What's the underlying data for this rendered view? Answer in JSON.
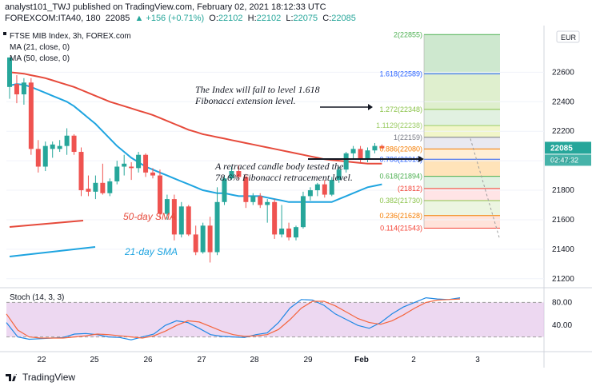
{
  "header": {
    "publisher_line": "analyst101_TWJ published on TradingView.com, February 02, 2021 18:12:33 UTC",
    "symbol_line": {
      "symbol": "FOREXCOM:ITA40, 180",
      "last": "22085",
      "change": "▲ +156 (+0.71%)",
      "o_label": "O:",
      "o": "22102",
      "h_label": "H:",
      "h": "22102",
      "l_label": "L:",
      "l": "22075",
      "c_label": "C:",
      "c": "22085"
    }
  },
  "legend": {
    "title": "FTSE MIB Index, 3h, FOREX.com",
    "ma21": "MA (21, close, 0)",
    "ma50": "MA (50, close, 0)"
  },
  "currency_badge": "EUR",
  "footer": {
    "brand": "TradingView"
  },
  "colors": {
    "up": "#26a69a",
    "down": "#ef5350",
    "ma21": "#1ea4e0",
    "ma50": "#e64a3b",
    "stoch_k": "#1e88e5",
    "stoch_d": "#f4653d",
    "stoch_band": "#e1bee7"
  },
  "annotations": {
    "fib_ext": "The Index will fall to level 1.618\nFibonacci extension level.",
    "retrace": "A retraced candle body tested the\n78.6% Fibonacci retracement level.",
    "sma50": "50-day SMA",
    "sma21": "21-day SMA"
  },
  "chart_data": [
    {
      "type": "candlestick",
      "title": "FTSE MIB Index, 3h, FOREX.com",
      "ylim": [
        21150,
        22900
      ],
      "yticks": [
        21200,
        21400,
        21600,
        21800,
        22000,
        22200,
        22400,
        22600
      ],
      "xticks": [
        "22",
        "25",
        "26",
        "27",
        "28",
        "29",
        "Feb",
        "2",
        "3"
      ],
      "price_label": "22085",
      "countdown_label": "02:47:32",
      "candles": [
        {
          "o": 22500,
          "h": 22700,
          "l": 22420,
          "c": 22700
        },
        {
          "o": 22520,
          "h": 22580,
          "l": 22390,
          "c": 22450
        },
        {
          "o": 22450,
          "h": 22560,
          "l": 22380,
          "c": 22530
        },
        {
          "o": 22530,
          "h": 22560,
          "l": 22040,
          "c": 22080
        },
        {
          "o": 22080,
          "h": 22140,
          "l": 21920,
          "c": 21960
        },
        {
          "o": 21960,
          "h": 22130,
          "l": 21930,
          "c": 22100
        },
        {
          "o": 22080,
          "h": 22130,
          "l": 22020,
          "c": 22110
        },
        {
          "o": 22080,
          "h": 22140,
          "l": 22060,
          "c": 22100
        },
        {
          "o": 22100,
          "h": 22220,
          "l": 22040,
          "c": 22170
        },
        {
          "o": 22170,
          "h": 22180,
          "l": 22040,
          "c": 22060
        },
        {
          "o": 22060,
          "h": 22090,
          "l": 21760,
          "c": 21800
        },
        {
          "o": 21810,
          "h": 21900,
          "l": 21760,
          "c": 21790
        },
        {
          "o": 21790,
          "h": 21900,
          "l": 21740,
          "c": 21850
        },
        {
          "o": 21850,
          "h": 21980,
          "l": 21770,
          "c": 21780
        },
        {
          "o": 21780,
          "h": 21880,
          "l": 21760,
          "c": 21860
        },
        {
          "o": 21860,
          "h": 22000,
          "l": 21840,
          "c": 21960
        },
        {
          "o": 21960,
          "h": 22040,
          "l": 21900,
          "c": 21980
        },
        {
          "o": 21960,
          "h": 21990,
          "l": 21870,
          "c": 21950
        },
        {
          "o": 21950,
          "h": 22060,
          "l": 21920,
          "c": 22040
        },
        {
          "o": 22040,
          "h": 22050,
          "l": 21890,
          "c": 21920
        },
        {
          "o": 21920,
          "h": 21950,
          "l": 21880,
          "c": 21900
        },
        {
          "o": 21900,
          "h": 21940,
          "l": 21610,
          "c": 21640
        },
        {
          "o": 21640,
          "h": 21770,
          "l": 21600,
          "c": 21740
        },
        {
          "o": 21740,
          "h": 21770,
          "l": 21460,
          "c": 21500
        },
        {
          "o": 21500,
          "h": 21720,
          "l": 21480,
          "c": 21690
        },
        {
          "o": 21690,
          "h": 21700,
          "l": 21490,
          "c": 21500
        },
        {
          "o": 21500,
          "h": 21560,
          "l": 21360,
          "c": 21380
        },
        {
          "o": 21380,
          "h": 21580,
          "l": 21370,
          "c": 21560
        },
        {
          "o": 21560,
          "h": 21620,
          "l": 21310,
          "c": 21380
        },
        {
          "o": 21380,
          "h": 21820,
          "l": 21360,
          "c": 21720
        },
        {
          "o": 21720,
          "h": 21900,
          "l": 21700,
          "c": 21880
        },
        {
          "o": 21880,
          "h": 21960,
          "l": 21870,
          "c": 21930
        },
        {
          "o": 21930,
          "h": 21970,
          "l": 21870,
          "c": 21890
        },
        {
          "o": 21890,
          "h": 21910,
          "l": 21680,
          "c": 21720
        },
        {
          "o": 21720,
          "h": 21780,
          "l": 21700,
          "c": 21760
        },
        {
          "o": 21760,
          "h": 21780,
          "l": 21680,
          "c": 21700
        },
        {
          "o": 21700,
          "h": 21740,
          "l": 21580,
          "c": 21720
        },
        {
          "o": 21720,
          "h": 21740,
          "l": 21470,
          "c": 21500
        },
        {
          "o": 21500,
          "h": 21700,
          "l": 21480,
          "c": 21540
        },
        {
          "o": 21540,
          "h": 21580,
          "l": 21460,
          "c": 21480
        },
        {
          "o": 21480,
          "h": 21560,
          "l": 21460,
          "c": 21550
        },
        {
          "o": 21550,
          "h": 21790,
          "l": 21540,
          "c": 21760
        },
        {
          "o": 21760,
          "h": 21820,
          "l": 21730,
          "c": 21800
        },
        {
          "o": 21800,
          "h": 21850,
          "l": 21760,
          "c": 21840
        },
        {
          "o": 21840,
          "h": 21870,
          "l": 21750,
          "c": 21770
        },
        {
          "o": 21770,
          "h": 21890,
          "l": 21760,
          "c": 21870
        },
        {
          "o": 21870,
          "h": 21960,
          "l": 21850,
          "c": 21940
        },
        {
          "o": 21940,
          "h": 22060,
          "l": 21920,
          "c": 22050
        },
        {
          "o": 22050,
          "h": 22100,
          "l": 22010,
          "c": 22080
        },
        {
          "o": 22080,
          "h": 22100,
          "l": 21990,
          "c": 22010
        },
        {
          "o": 22010,
          "h": 22090,
          "l": 21990,
          "c": 22070
        },
        {
          "o": 22070,
          "h": 22120,
          "l": 22050,
          "c": 22100
        },
        {
          "o": 22100,
          "h": 22110,
          "l": 22080,
          "c": 22085
        }
      ],
      "ma50": [
        22600,
        22595,
        22590,
        22580,
        22570,
        22560,
        22545,
        22530,
        22515,
        22500,
        22480,
        22460,
        22440,
        22420,
        22400,
        22385,
        22370,
        22355,
        22340,
        22325,
        22310,
        22290,
        22270,
        22250,
        22230,
        22210,
        22195,
        22180,
        22170,
        22160,
        22150,
        22140,
        22130,
        22120,
        22110,
        22100,
        22090,
        22080,
        22070,
        22060,
        22050,
        22040,
        22030,
        22020,
        22010,
        22005,
        22000,
        21995,
        21990,
        21985,
        21980,
        21980,
        21980
      ],
      "ma21": [
        22510,
        22520,
        22515,
        22500,
        22480,
        22460,
        22440,
        22420,
        22400,
        22370,
        22330,
        22290,
        22250,
        22200,
        22150,
        22100,
        22060,
        22020,
        21990,
        21960,
        21940,
        21920,
        21900,
        21880,
        21860,
        21840,
        21820,
        21800,
        21790,
        21780,
        21780,
        21770,
        21760,
        21760,
        21760,
        21760,
        21750,
        21740,
        21730,
        21720,
        21720,
        21720,
        21720,
        21720,
        21720,
        21720,
        21740,
        21760,
        21780,
        21800,
        21820,
        21830,
        21840
      ],
      "fib_levels": [
        {
          "label": "2(22855)",
          "price": 22855,
          "color": "#4caf50"
        },
        {
          "label": "1.618(22589)",
          "price": 22589,
          "color": "#2962ff"
        },
        {
          "label": "1.272(22348)",
          "price": 22348,
          "color": "#8bc34a"
        },
        {
          "label": "1.1129(22238)",
          "price": 22238,
          "color": "#9ccc65"
        },
        {
          "label": "1(22159)",
          "price": 22159,
          "color": "#787b86"
        },
        {
          "label": "0.886(22080)",
          "price": 22080,
          "color": "#f57c00"
        },
        {
          "label": "0.786(22010)",
          "price": 22010,
          "color": "#2962ff"
        },
        {
          "label": "0.618(21894)",
          "price": 21894,
          "color": "#4caf50"
        },
        {
          "label": "(21812)",
          "price": 21812,
          "color": "#f44336"
        },
        {
          "label": "0.382(21730)",
          "price": 21730,
          "color": "#8bc34a"
        },
        {
          "label": "0.236(21628)",
          "price": 21628,
          "color": "#f57c00"
        },
        {
          "label": "0.114(21543)",
          "price": 21543,
          "color": "#f44336"
        }
      ]
    },
    {
      "type": "line",
      "title": "Stoch (14, 3, 3)",
      "ylim": [
        0,
        100
      ],
      "yticks": [
        40,
        80
      ],
      "band": [
        20,
        80
      ],
      "series": [
        {
          "values": [
            45,
            20,
            16,
            17,
            18,
            19,
            25,
            26,
            24,
            20,
            19,
            15,
            20,
            25,
            40,
            48,
            45,
            35,
            24,
            21,
            20,
            19,
            24,
            27,
            45,
            70,
            85,
            84,
            75,
            60,
            50,
            40,
            35,
            45,
            60,
            72,
            80,
            88,
            86,
            85,
            88
          ]
        },
        {
          "values": [
            60,
            32,
            20,
            18,
            18,
            18,
            20,
            22,
            25,
            24,
            22,
            20,
            18,
            22,
            30,
            40,
            48,
            46,
            38,
            30,
            24,
            21,
            22,
            24,
            33,
            50,
            70,
            82,
            82,
            74,
            63,
            52,
            45,
            42,
            48,
            58,
            70,
            80,
            84,
            85,
            86
          ]
        }
      ]
    }
  ]
}
